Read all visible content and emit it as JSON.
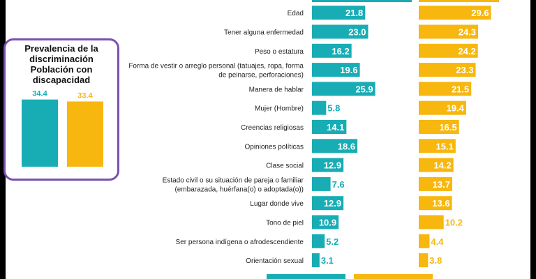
{
  "summary": {
    "title_lines": [
      "Prevalencia de la",
      "discriminación",
      "Población con",
      "discapacidad"
    ],
    "values": [
      34.4,
      33.4
    ]
  },
  "chart_data": {
    "type": "bar",
    "orientation": "horizontal",
    "categories": [
      "Edad",
      "Tener alguna enfermedad",
      "Peso o estatura",
      "Forma de vestir o arreglo personal (tatuajes, ropa, forma de peinarse, perforaciones)",
      "Manera de hablar",
      "Mujer (Hombre)",
      "Creencias religiosas",
      "Opiniones políticas",
      "Clase social",
      "Estado civil o su situación de pareja o familiar (embarazada, huérfana(o) o adoptada(o))",
      "Lugar donde vive",
      "Tono de piel",
      "Ser persona indígena o afrodescendiente",
      "Orientación sexual"
    ],
    "category_lines": [
      [
        "Edad"
      ],
      [
        "Tener alguna enfermedad"
      ],
      [
        "Peso o estatura"
      ],
      [
        "Forma de vestir o arreglo personal (tatuajes, ropa, forma",
        "de peinarse, perforaciones)"
      ],
      [
        "Manera de hablar"
      ],
      [
        "Mujer (Hombre)"
      ],
      [
        "Creencias religiosas"
      ],
      [
        "Opiniones políticas"
      ],
      [
        "Clase social"
      ],
      [
        "Estado civil o su situación de pareja o familiar",
        "(embarazada, huérfana(o) o adoptada(o))"
      ],
      [
        "Lugar donde vive"
      ],
      [
        "Tono de piel"
      ],
      [
        "Ser persona indígena o afrodescendiente"
      ],
      [
        "Orientación sexual"
      ]
    ],
    "series": [
      {
        "values": [
          21.8,
          23.0,
          16.2,
          19.6,
          25.9,
          5.8,
          14.1,
          18.6,
          12.9,
          7.6,
          12.9,
          10.9,
          5.2,
          3.1
        ],
        "color": "#18adb5"
      },
      {
        "values": [
          29.6,
          24.3,
          24.2,
          23.3,
          21.5,
          19.4,
          16.5,
          15.1,
          14.2,
          13.7,
          13.6,
          10.2,
          4.4,
          3.8
        ],
        "color": "#f7b70f"
      }
    ],
    "title": "",
    "xlabel": "",
    "ylabel": "",
    "grid": false
  }
}
